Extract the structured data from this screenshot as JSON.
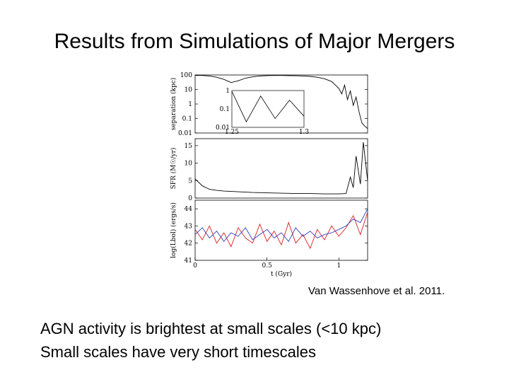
{
  "slide": {
    "title": "Results from Simulations of Major Mergers",
    "citation": "Van Wassenhove et al. 2011.",
    "bullets": [
      "AGN activity is brightest at small scales (<10 kpc)",
      "Small scales have very short timescales"
    ]
  },
  "chart_data": [
    {
      "type": "line",
      "panel": "top",
      "ylabel": "separation (kpc)",
      "yscale": "log",
      "ylim": [
        0.01,
        100
      ],
      "xlim": [
        0,
        1.2
      ],
      "yticks": [
        "100",
        "10",
        "1",
        "0.1",
        "0.01"
      ],
      "series": [
        {
          "color": "#000000",
          "x": [
            0.0,
            0.05,
            0.1,
            0.15,
            0.2,
            0.25,
            0.3,
            0.35,
            0.4,
            0.45,
            0.5,
            0.55,
            0.6,
            0.65,
            0.7,
            0.75,
            0.8,
            0.85,
            0.9,
            0.95,
            1.0,
            1.02,
            1.04,
            1.06,
            1.08,
            1.1,
            1.12,
            1.14,
            1.16,
            1.18,
            1.2
          ],
          "y": [
            95,
            92,
            85,
            70,
            50,
            30,
            40,
            60,
            75,
            85,
            90,
            92,
            92,
            90,
            88,
            85,
            80,
            70,
            55,
            35,
            12,
            5,
            20,
            2,
            8,
            0.8,
            3,
            0.3,
            0.05,
            0.03,
            0.02
          ]
        }
      ],
      "inset": {
        "ylabels": [
          "1",
          "0.1",
          "0.01"
        ],
        "xlabels": [
          "1.25",
          "1.3"
        ],
        "xlim": [
          1.25,
          1.3
        ],
        "ylim": [
          0.01,
          1
        ],
        "x": [
          1.25,
          1.26,
          1.27,
          1.28,
          1.29,
          1.3
        ],
        "y": [
          0.9,
          0.02,
          0.5,
          0.03,
          0.3,
          0.04
        ]
      }
    },
    {
      "type": "line",
      "panel": "middle",
      "ylabel": "SFR (M☉/yr)",
      "ylim": [
        0,
        17
      ],
      "xlim": [
        0,
        1.2
      ],
      "yticks": [
        "15",
        "10",
        "5",
        "0"
      ],
      "series": [
        {
          "color": "#000000",
          "x": [
            0.0,
            0.05,
            0.1,
            0.15,
            0.2,
            0.3,
            0.4,
            0.5,
            0.6,
            0.7,
            0.8,
            0.9,
            1.0,
            1.05,
            1.08,
            1.1,
            1.12,
            1.15,
            1.17,
            1.2
          ],
          "y": [
            5.5,
            3.5,
            2.5,
            2.2,
            2.0,
            1.8,
            1.6,
            1.5,
            1.4,
            1.3,
            1.3,
            1.2,
            1.2,
            1.3,
            6.0,
            3.0,
            12.0,
            4.0,
            16.0,
            5.0
          ]
        }
      ]
    },
    {
      "type": "line",
      "panel": "bottom",
      "ylabel": "log(Lbol) (ergs/s)",
      "xlabel": "t (Gyr)",
      "ylim": [
        41,
        44.5
      ],
      "xlim": [
        0,
        1.2
      ],
      "yticks": [
        "44",
        "43",
        "42",
        "41"
      ],
      "xticks": [
        "0",
        "0.5",
        "1"
      ],
      "xtick_values": [
        0,
        0.5,
        1
      ],
      "series": [
        {
          "color": "#d62020",
          "x": [
            0.0,
            0.05,
            0.1,
            0.15,
            0.2,
            0.25,
            0.3,
            0.35,
            0.4,
            0.45,
            0.5,
            0.55,
            0.6,
            0.65,
            0.7,
            0.75,
            0.8,
            0.85,
            0.9,
            0.95,
            1.0,
            1.05,
            1.1,
            1.15,
            1.2
          ],
          "y": [
            42.8,
            42.2,
            43.0,
            42.0,
            42.6,
            41.8,
            42.9,
            42.3,
            42.0,
            43.1,
            42.1,
            42.7,
            41.9,
            43.2,
            42.0,
            42.5,
            41.7,
            42.8,
            42.2,
            43.0,
            42.4,
            42.9,
            43.6,
            42.5,
            43.8
          ]
        },
        {
          "color": "#3040c0",
          "x": [
            0.0,
            0.05,
            0.1,
            0.15,
            0.2,
            0.25,
            0.3,
            0.35,
            0.4,
            0.45,
            0.5,
            0.55,
            0.6,
            0.65,
            0.7,
            0.75,
            0.8,
            0.85,
            0.9,
            0.95,
            1.0,
            1.05,
            1.1,
            1.15,
            1.2
          ],
          "y": [
            42.5,
            42.9,
            42.3,
            42.7,
            42.1,
            42.6,
            42.4,
            42.9,
            42.2,
            42.5,
            42.8,
            42.3,
            42.6,
            42.1,
            42.9,
            42.4,
            42.7,
            42.3,
            42.5,
            42.6,
            42.8,
            43.0,
            43.4,
            43.2,
            44.0
          ]
        }
      ]
    }
  ]
}
